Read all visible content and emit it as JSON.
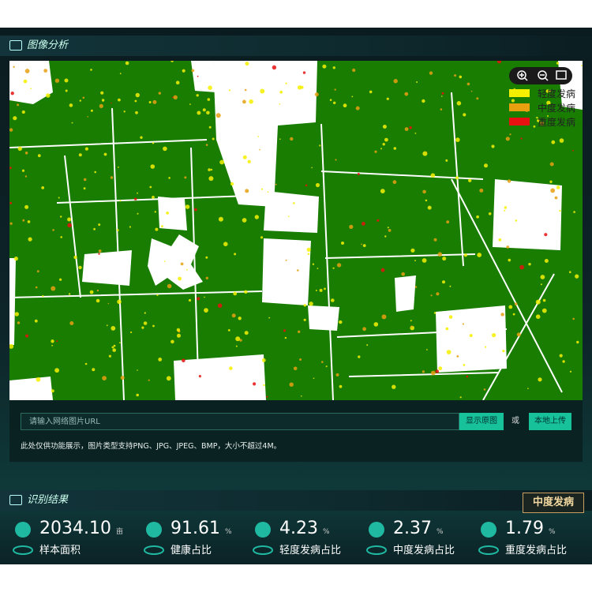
{
  "image_analysis": {
    "title": "图像分析",
    "legend": [
      {
        "label": "轻度发病",
        "color": "#f5f000"
      },
      {
        "label": "中度发病",
        "color": "#e8a010"
      },
      {
        "label": "重度发病",
        "color": "#e81010"
      }
    ],
    "url_placeholder": "请输入网络图片URL",
    "show_button": "显示原图",
    "or": "或",
    "upload_button": "本地上传",
    "note": "此处仅供功能展示，图片类型支持PNG、JPG、JPEG、BMP，大小不超过4M。"
  },
  "results": {
    "title": "识别结果",
    "status": "中度发病",
    "stats": [
      {
        "value": "2034.10",
        "unit": "亩",
        "label": "样本面积"
      },
      {
        "value": "91.61",
        "unit": "%",
        "label": "健康占比"
      },
      {
        "value": "4.23",
        "unit": "%",
        "label": "轻度发病占比"
      },
      {
        "value": "2.37",
        "unit": "%",
        "label": "中度发病占比"
      },
      {
        "value": "1.79",
        "unit": "%",
        "label": "重度发病占比"
      }
    ]
  }
}
